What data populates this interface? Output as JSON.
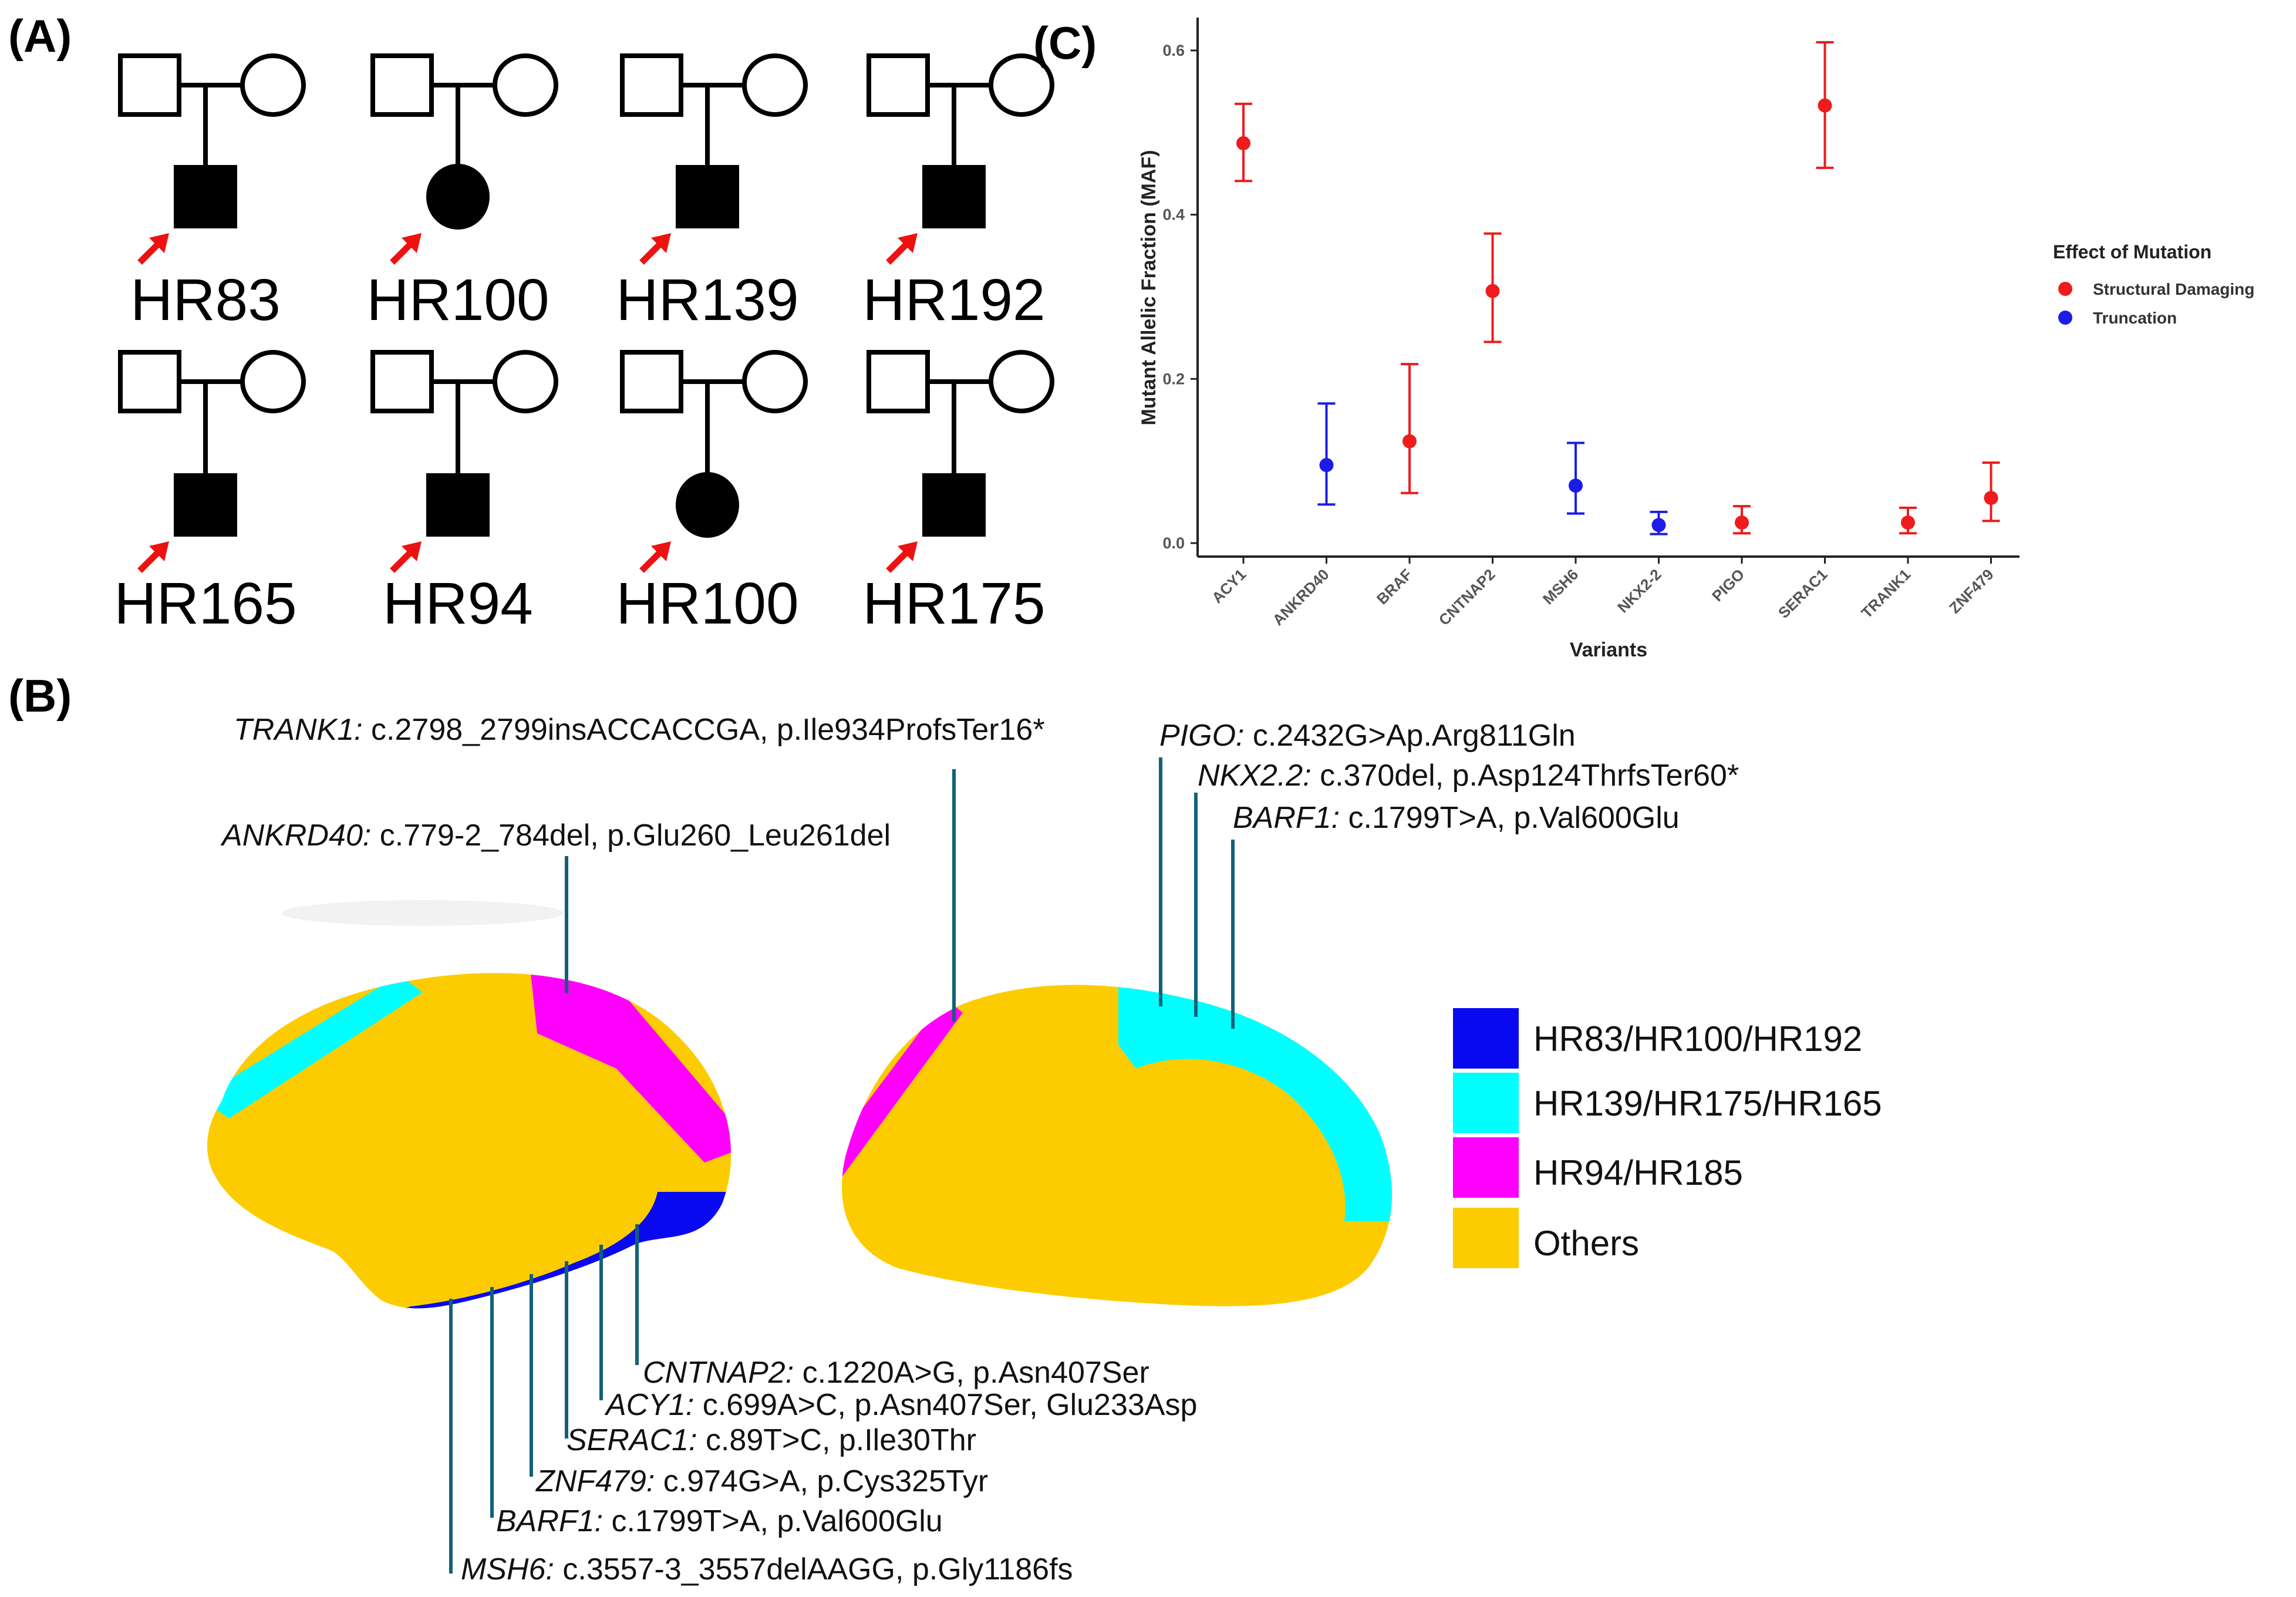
{
  "panel_labels": {
    "a": "(A)",
    "b": "(B)",
    "c": "(C)"
  },
  "pedigrees": [
    {
      "id": "HR83",
      "proband_sex": "male"
    },
    {
      "id": "HR100",
      "proband_sex": "female"
    },
    {
      "id": "HR139",
      "proband_sex": "male"
    },
    {
      "id": "HR192",
      "proband_sex": "male"
    },
    {
      "id": "HR165",
      "proband_sex": "male"
    },
    {
      "id": "HR94",
      "proband_sex": "male"
    },
    {
      "id": "HR100",
      "proband_sex": "female"
    },
    {
      "id": "HR175",
      "proband_sex": "male"
    }
  ],
  "colors": {
    "blue_region": "#0a0af0",
    "cyan_region": "#00ffff",
    "magenta_region": "#ff00ff",
    "other_region": "#fccc00",
    "structural": "#ee1c1c",
    "truncation": "#1c1ce6",
    "leader_line": "#11617a",
    "arrow": "#ee1111"
  },
  "brain_legend": [
    {
      "label": "HR83/HR100/HR192",
      "color": "#0a0af0"
    },
    {
      "label": "HR139/HR175/HR165",
      "color": "#00ffff"
    },
    {
      "label": "HR94/HR185",
      "color": "#ff00ff"
    },
    {
      "label": "Others",
      "color": "#fccc00"
    }
  ],
  "annotations": {
    "trank1": {
      "gene": "TRANK1:",
      "text": " c.2798_2799insACCACCGA,  p.Ile934ProfsTer16*"
    },
    "ankrd40": {
      "gene": "ANKRD40:",
      "text": " c.779-2_784del, p.Glu260_Leu261del"
    },
    "pigo": {
      "gene": "PIGO:",
      "text": " c.2432G>Ap.Arg811Gln"
    },
    "nkx22": {
      "gene": "NKX2.2:",
      "text": " c.370del,  p.Asp124ThrfsTer60*"
    },
    "barf1_top": {
      "gene": "BARF1:",
      "text": " c.1799T>A, p.Val600Glu"
    },
    "cntnap2": {
      "gene": "CNTNAP2:",
      "text": " c.1220A>G, p.Asn407Ser"
    },
    "acy1": {
      "gene": "ACY1:",
      "text": " c.699A>C, p.Asn407Ser, Glu233Asp"
    },
    "serac1": {
      "gene": "SERAC1:",
      "text": " c.89T>C, p.Ile30Thr"
    },
    "znf479": {
      "gene": "ZNF479:",
      "text": " c.974G>A, p.Cys325Tyr"
    },
    "barf1_bot": {
      "gene": "BARF1:",
      "text": " c.1799T>A, p.Val600Glu"
    },
    "msh6": {
      "gene": "MSH6:",
      "text": " c.3557-3_3557delAAGG, p.Gly1186fs"
    }
  },
  "chart_data": {
    "type": "scatter",
    "subtype": "point-with-error-bars",
    "title": "",
    "xlabel": "Variants",
    "ylabel": "Mutant Allelic Fraction (MAF)",
    "ylim": [
      0.0,
      0.64
    ],
    "yticks": [
      0.0,
      0.2,
      0.4,
      0.6
    ],
    "ytick_labels": [
      "0.0",
      "0.2",
      "0.4",
      "0.6"
    ],
    "grid": false,
    "legend_title": "Effect of Mutation",
    "legend_position": "right",
    "categories": [
      "ACY1",
      "ANKRD40",
      "BRAF",
      "CNTNAP2",
      "MSH6",
      "NKX2-2",
      "PIGO",
      "SERAC1",
      "TRANK1",
      "ZNF479"
    ],
    "series": [
      {
        "name": "Structural Damaging",
        "color": "#ee1c1c",
        "points": [
          {
            "category": "ACY1",
            "value": 0.487,
            "low": 0.441,
            "high": 0.535
          },
          {
            "category": "BRAF",
            "value": 0.124,
            "low": 0.061,
            "high": 0.218
          },
          {
            "category": "CNTNAP2",
            "value": 0.307,
            "low": 0.245,
            "high": 0.377
          },
          {
            "category": "PIGO",
            "value": 0.025,
            "low": 0.012,
            "high": 0.045
          },
          {
            "category": "SERAC1",
            "value": 0.533,
            "low": 0.457,
            "high": 0.61
          },
          {
            "category": "TRANK1",
            "value": 0.025,
            "low": 0.012,
            "high": 0.043
          },
          {
            "category": "ZNF479",
            "value": 0.055,
            "low": 0.027,
            "high": 0.098
          }
        ]
      },
      {
        "name": "Truncation",
        "color": "#1c1ce6",
        "points": [
          {
            "category": "ANKRD40",
            "value": 0.095,
            "low": 0.047,
            "high": 0.17
          },
          {
            "category": "MSH6",
            "value": 0.07,
            "low": 0.036,
            "high": 0.122
          },
          {
            "category": "NKX2-2",
            "value": 0.022,
            "low": 0.011,
            "high": 0.038
          }
        ]
      }
    ]
  }
}
